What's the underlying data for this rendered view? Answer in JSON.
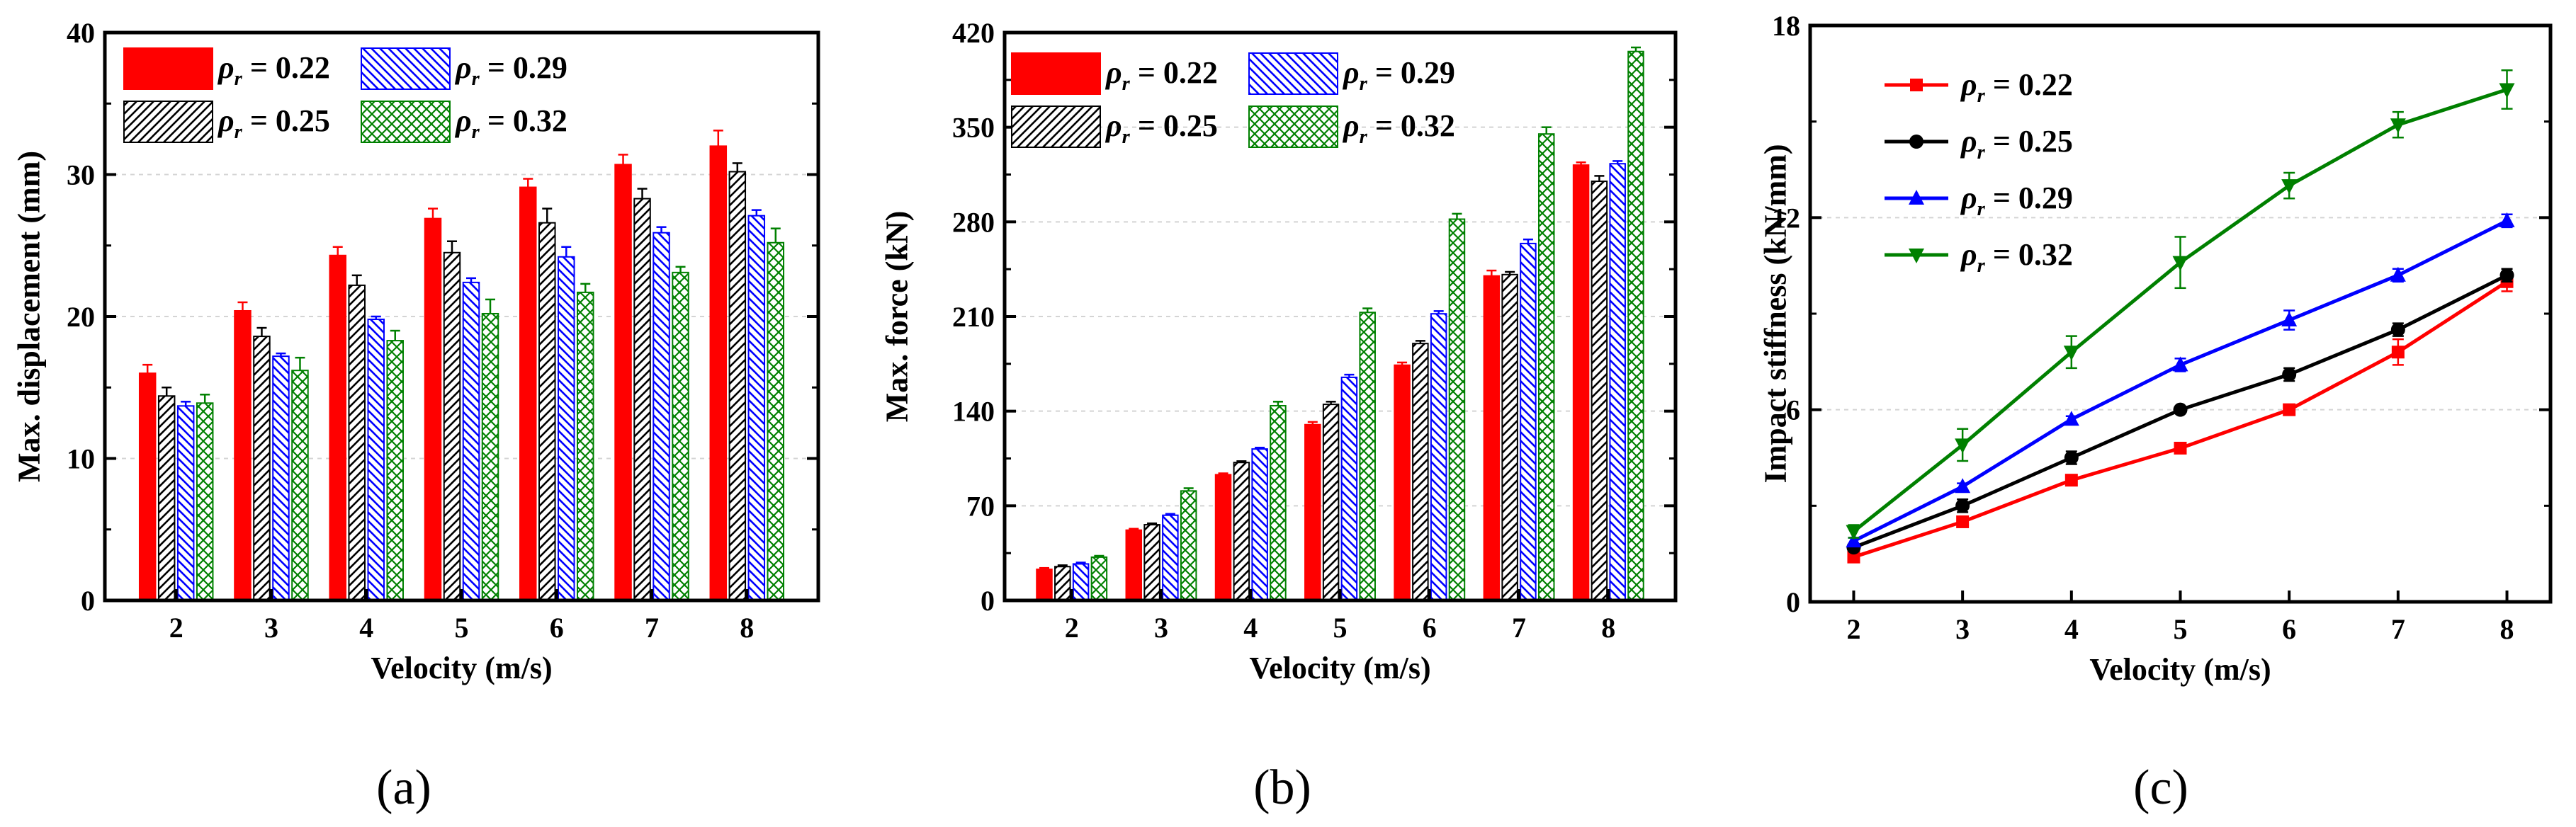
{
  "chart_data": [
    {
      "type": "bar",
      "panel": "(a)",
      "xlabel": "Velocity (m/s)",
      "ylabel": "Max. displacement (mm)",
      "categories": [
        "2",
        "3",
        "4",
        "5",
        "6",
        "7",
        "8"
      ],
      "ylim": [
        0,
        40
      ],
      "yticks": [
        "0",
        "10",
        "20",
        "30",
        "40"
      ],
      "legend_position": "top-left",
      "series": [
        {
          "name": "ρr = 0.22",
          "legend_symbol": "ρ",
          "legend_sub": "r",
          "legend_value": " = 0.22",
          "color": "#ff0000",
          "pattern": "solid",
          "values": [
            16.0,
            20.4,
            24.3,
            26.9,
            29.1,
            30.7,
            32.0
          ],
          "errors": [
            0.6,
            0.6,
            0.6,
            0.7,
            0.6,
            0.7,
            1.1
          ]
        },
        {
          "name": "ρr = 0.25",
          "legend_symbol": "ρ",
          "legend_sub": "r",
          "legend_value": " = 0.25",
          "color": "#000000",
          "pattern": "hatch-diag",
          "values": [
            14.4,
            18.6,
            22.2,
            24.5,
            26.6,
            28.3,
            30.2
          ],
          "errors": [
            0.6,
            0.6,
            0.7,
            0.8,
            1.0,
            0.7,
            0.6
          ]
        },
        {
          "name": "ρr = 0.29",
          "legend_symbol": "ρ",
          "legend_sub": "r",
          "legend_value": " = 0.29",
          "color": "#0000ff",
          "pattern": "hatch-back",
          "values": [
            13.7,
            17.2,
            19.8,
            22.4,
            24.2,
            25.9,
            27.1
          ],
          "errors": [
            0.3,
            0.2,
            0.2,
            0.3,
            0.7,
            0.4,
            0.4
          ]
        },
        {
          "name": "ρr = 0.32",
          "legend_symbol": "ρ",
          "legend_sub": "r",
          "legend_value": " = 0.32",
          "color": "#008000",
          "pattern": "crosshatch",
          "values": [
            13.9,
            16.2,
            18.3,
            20.2,
            21.7,
            23.1,
            25.2
          ],
          "errors": [
            0.6,
            0.9,
            0.7,
            1.0,
            0.6,
            0.4,
            1.0
          ]
        }
      ]
    },
    {
      "type": "bar",
      "panel": "(b)",
      "xlabel": "Velocity (m/s)",
      "ylabel": "Max. force (kN)",
      "categories": [
        "2",
        "3",
        "4",
        "5",
        "6",
        "7",
        "8"
      ],
      "ylim": [
        0,
        420
      ],
      "yticks": [
        "0",
        "70",
        "140",
        "210",
        "280",
        "350",
        "420"
      ],
      "legend_position": "top-left",
      "series": [
        {
          "name": "ρr = 0.22",
          "legend_symbol": "ρ",
          "legend_sub": "r",
          "legend_value": " = 0.22",
          "color": "#ff0000",
          "pattern": "solid",
          "values": [
            23,
            52,
            93,
            130,
            174,
            240,
            322
          ],
          "errors": [
            1,
            1,
            1,
            2,
            2,
            4,
            2
          ]
        },
        {
          "name": "ρr = 0.25",
          "legend_symbol": "ρ",
          "legend_sub": "r",
          "legend_value": " = 0.25",
          "color": "#000000",
          "pattern": "hatch-diag",
          "values": [
            25,
            56,
            102,
            145,
            190,
            241,
            310
          ],
          "errors": [
            1,
            1,
            1,
            2,
            2,
            2,
            4
          ]
        },
        {
          "name": "ρr = 0.29",
          "legend_symbol": "ρ",
          "legend_sub": "r",
          "legend_value": " = 0.29",
          "color": "#0000ff",
          "pattern": "hatch-back",
          "values": [
            27,
            63,
            112,
            165,
            212,
            264,
            323
          ],
          "errors": [
            1,
            1,
            1,
            2,
            2,
            3,
            2
          ]
        },
        {
          "name": "ρr = 0.32",
          "legend_symbol": "ρ",
          "legend_sub": "r",
          "legend_value": " = 0.32",
          "color": "#008000",
          "pattern": "crosshatch",
          "values": [
            32,
            81,
            144,
            213,
            282,
            345,
            406
          ],
          "errors": [
            1,
            2,
            3,
            3,
            4,
            5,
            3
          ]
        }
      ]
    },
    {
      "type": "line",
      "panel": "(c)",
      "xlabel": "Velocity (m/s)",
      "ylabel": "Impact stiffness (kN/mm)",
      "x": [
        2,
        3,
        4,
        5,
        6,
        7,
        8
      ],
      "xticks": [
        "2",
        "3",
        "4",
        "5",
        "6",
        "7",
        "8"
      ],
      "xlim": [
        1.6,
        8.4
      ],
      "ylim": [
        0,
        18
      ],
      "yticks": [
        "0",
        "6",
        "12",
        "18"
      ],
      "legend_position": "top-left",
      "series": [
        {
          "name": "ρr = 0.22",
          "legend_symbol": "ρ",
          "legend_sub": "r",
          "legend_value": " = 0.22",
          "color": "#ff0000",
          "marker": "square",
          "values": [
            1.4,
            2.5,
            3.8,
            4.8,
            6.0,
            7.8,
            10.0
          ],
          "errors": [
            0.1,
            0.1,
            0.1,
            0.1,
            0.1,
            0.4,
            0.3
          ]
        },
        {
          "name": "ρr = 0.25",
          "legend_symbol": "ρ",
          "legend_sub": "r",
          "legend_value": " = 0.25",
          "color": "#000000",
          "marker": "circle",
          "values": [
            1.7,
            3.0,
            4.5,
            6.0,
            7.1,
            8.5,
            10.2
          ],
          "errors": [
            0.1,
            0.2,
            0.2,
            0.1,
            0.2,
            0.2,
            0.2
          ]
        },
        {
          "name": "ρr = 0.29",
          "legend_symbol": "ρ",
          "legend_sub": "r",
          "legend_value": " = 0.29",
          "color": "#0000ff",
          "marker": "triangle-up",
          "values": [
            1.9,
            3.6,
            5.7,
            7.4,
            8.8,
            10.2,
            11.9
          ],
          "errors": [
            0.1,
            0.1,
            0.1,
            0.2,
            0.3,
            0.2,
            0.2
          ]
        },
        {
          "name": "ρr = 0.32",
          "legend_symbol": "ρ",
          "legend_sub": "r",
          "legend_value": " = 0.32",
          "color": "#008000",
          "marker": "triangle-down",
          "values": [
            2.2,
            4.9,
            7.8,
            10.6,
            13.0,
            14.9,
            16.0
          ],
          "errors": [
            0.2,
            0.5,
            0.5,
            0.8,
            0.4,
            0.4,
            0.6
          ]
        }
      ]
    }
  ]
}
